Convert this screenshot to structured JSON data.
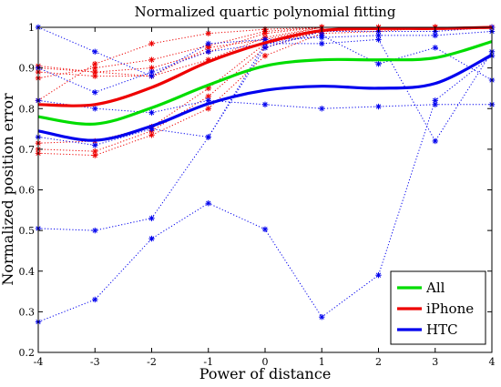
{
  "chart_data": {
    "type": "line",
    "title": "Normalized quartic polynomial fitting",
    "xlabel": "Power of distance",
    "ylabel": "Normalized position error",
    "xlim": [
      -4,
      4
    ],
    "ylim": [
      0.2,
      1.0
    ],
    "x_ticks": [
      "-4",
      "-3",
      "-2",
      "-1",
      "0",
      "1",
      "2",
      "3",
      "4"
    ],
    "y_ticks": [
      "0.2",
      "0.3",
      "0.4",
      "0.5",
      "0.6",
      "0.7",
      "0.8",
      "0.9",
      "1"
    ],
    "legend_position": "bottom-right",
    "x": [
      -4,
      -3,
      -2,
      -1,
      0,
      1,
      2,
      3,
      4
    ],
    "series": [
      {
        "name": "All",
        "color": "#00dd00",
        "style": "thick-line",
        "values": [
          0.78,
          0.762,
          0.802,
          0.858,
          0.905,
          0.92,
          0.92,
          0.925,
          0.965
        ]
      },
      {
        "name": "iPhone",
        "color": "#ee0000",
        "style": "thick-line",
        "values": [
          0.81,
          0.81,
          0.852,
          0.915,
          0.962,
          0.992,
          0.997,
          0.997,
          1.0
        ]
      },
      {
        "name": "HTC",
        "color": "#0000ee",
        "style": "thick-line",
        "values": [
          0.745,
          0.722,
          0.757,
          0.812,
          0.845,
          0.855,
          0.85,
          0.862,
          0.932
        ]
      }
    ],
    "sample_series": [
      {
        "color": "#ee0000",
        "values": [
          0.69,
          0.685,
          0.735,
          0.8,
          0.93,
          0.985,
          0.99,
          1.0,
          1.0
        ]
      },
      {
        "color": "#ee0000",
        "values": [
          0.7,
          0.695,
          0.745,
          0.83,
          0.95,
          0.99,
          0.995,
          1.0,
          1.0
        ]
      },
      {
        "color": "#ee0000",
        "values": [
          0.715,
          0.72,
          0.755,
          0.85,
          0.96,
          0.99,
          1.0,
          1.0,
          1.0
        ]
      },
      {
        "color": "#ee0000",
        "values": [
          0.89,
          0.88,
          0.88,
          0.92,
          0.975,
          1.0,
          1.0,
          1.0,
          1.0
        ]
      },
      {
        "color": "#ee0000",
        "values": [
          0.9,
          0.89,
          0.9,
          0.94,
          0.985,
          1.0,
          1.0,
          1.0,
          1.0
        ]
      },
      {
        "color": "#ee0000",
        "values": [
          0.875,
          0.9,
          0.92,
          0.955,
          0.99,
          1.0,
          1.0,
          1.0,
          1.0
        ]
      },
      {
        "color": "#ee0000",
        "values": [
          0.82,
          0.91,
          0.96,
          0.985,
          0.995,
          1.0,
          1.0,
          1.0,
          1.0
        ]
      },
      {
        "color": "#ee0000",
        "values": [
          0.905,
          0.89,
          0.88,
          0.95,
          0.97,
          1.0,
          1.0,
          1.0,
          1.0
        ]
      },
      {
        "color": "#0000ee",
        "values": [
          1.0,
          0.94,
          0.88,
          0.96,
          0.97,
          0.975,
          0.98,
          0.98,
          0.99
        ]
      },
      {
        "color": "#0000ee",
        "values": [
          0.9,
          0.84,
          0.89,
          0.94,
          0.96,
          0.98,
          0.91,
          0.95,
          0.87
        ]
      },
      {
        "color": "#0000ee",
        "values": [
          0.82,
          0.8,
          0.79,
          0.82,
          0.81,
          0.8,
          0.805,
          0.81,
          0.81
        ]
      },
      {
        "color": "#0000ee",
        "values": [
          0.73,
          0.71,
          0.75,
          0.73,
          0.95,
          0.99,
          0.99,
          0.99,
          1.0
        ]
      },
      {
        "color": "#0000ee",
        "values": [
          0.505,
          0.5,
          0.53,
          0.73,
          0.96,
          0.96,
          0.97,
          0.72,
          0.94
        ]
      },
      {
        "color": "#0000ee",
        "values": [
          0.275,
          0.33,
          0.48,
          0.567,
          0.503,
          0.287,
          0.39,
          0.82,
          0.93
        ]
      }
    ]
  }
}
